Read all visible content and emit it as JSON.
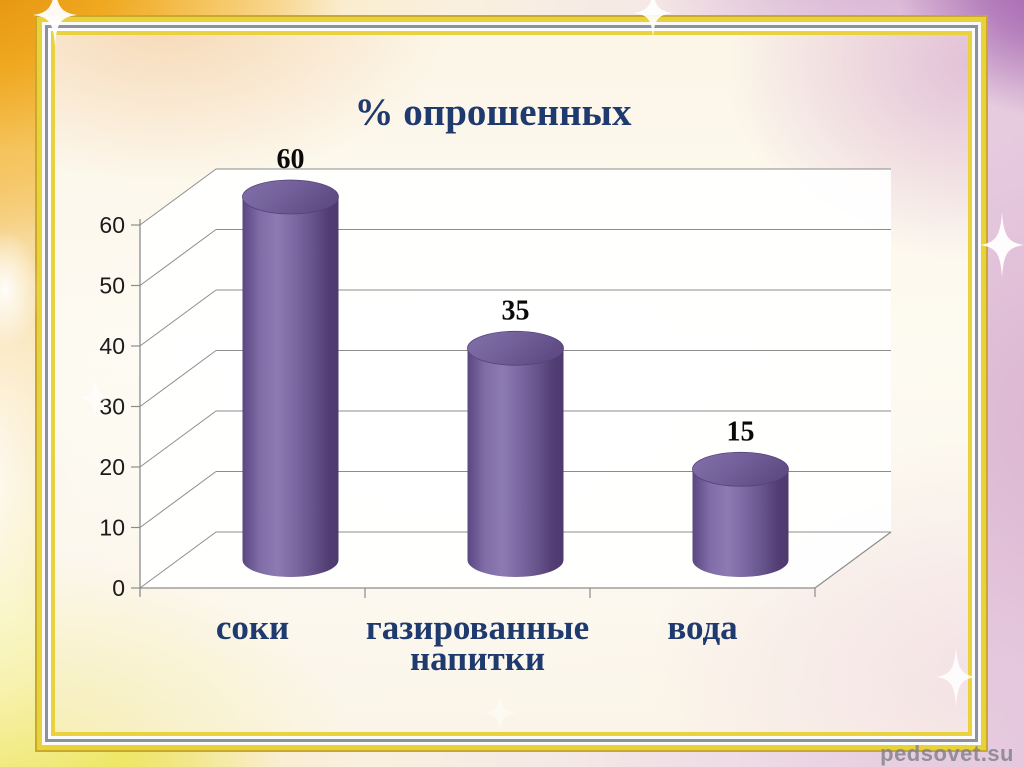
{
  "slide": {
    "watermark": "pedsovet.su"
  },
  "chart_data": {
    "type": "bar",
    "subtype": "3d-cylinder",
    "title": "% опрошенных",
    "categories": [
      "соки",
      "газированные напитки",
      "вода"
    ],
    "values": [
      60,
      35,
      15
    ],
    "data_labels": [
      "60",
      "35",
      "15"
    ],
    "y_ticks": [
      0,
      10,
      20,
      30,
      40,
      50,
      60
    ],
    "ylim": [
      0,
      60
    ],
    "xlabel": "",
    "ylabel": "",
    "legend": "none",
    "grid": true,
    "colors": {
      "bar": "#7a66a5",
      "bar_dark": "#4e3a6e",
      "bar_light": "#8d7ab3",
      "title_text": "#1e3a6e",
      "category_text": "#1e3a6e",
      "value_label_text": "#0a0a0a",
      "axis_line": "#8c8c8c",
      "tick_text": "#1b1b1b"
    }
  },
  "icons": {
    "sparkle": "sparkle-icon"
  }
}
